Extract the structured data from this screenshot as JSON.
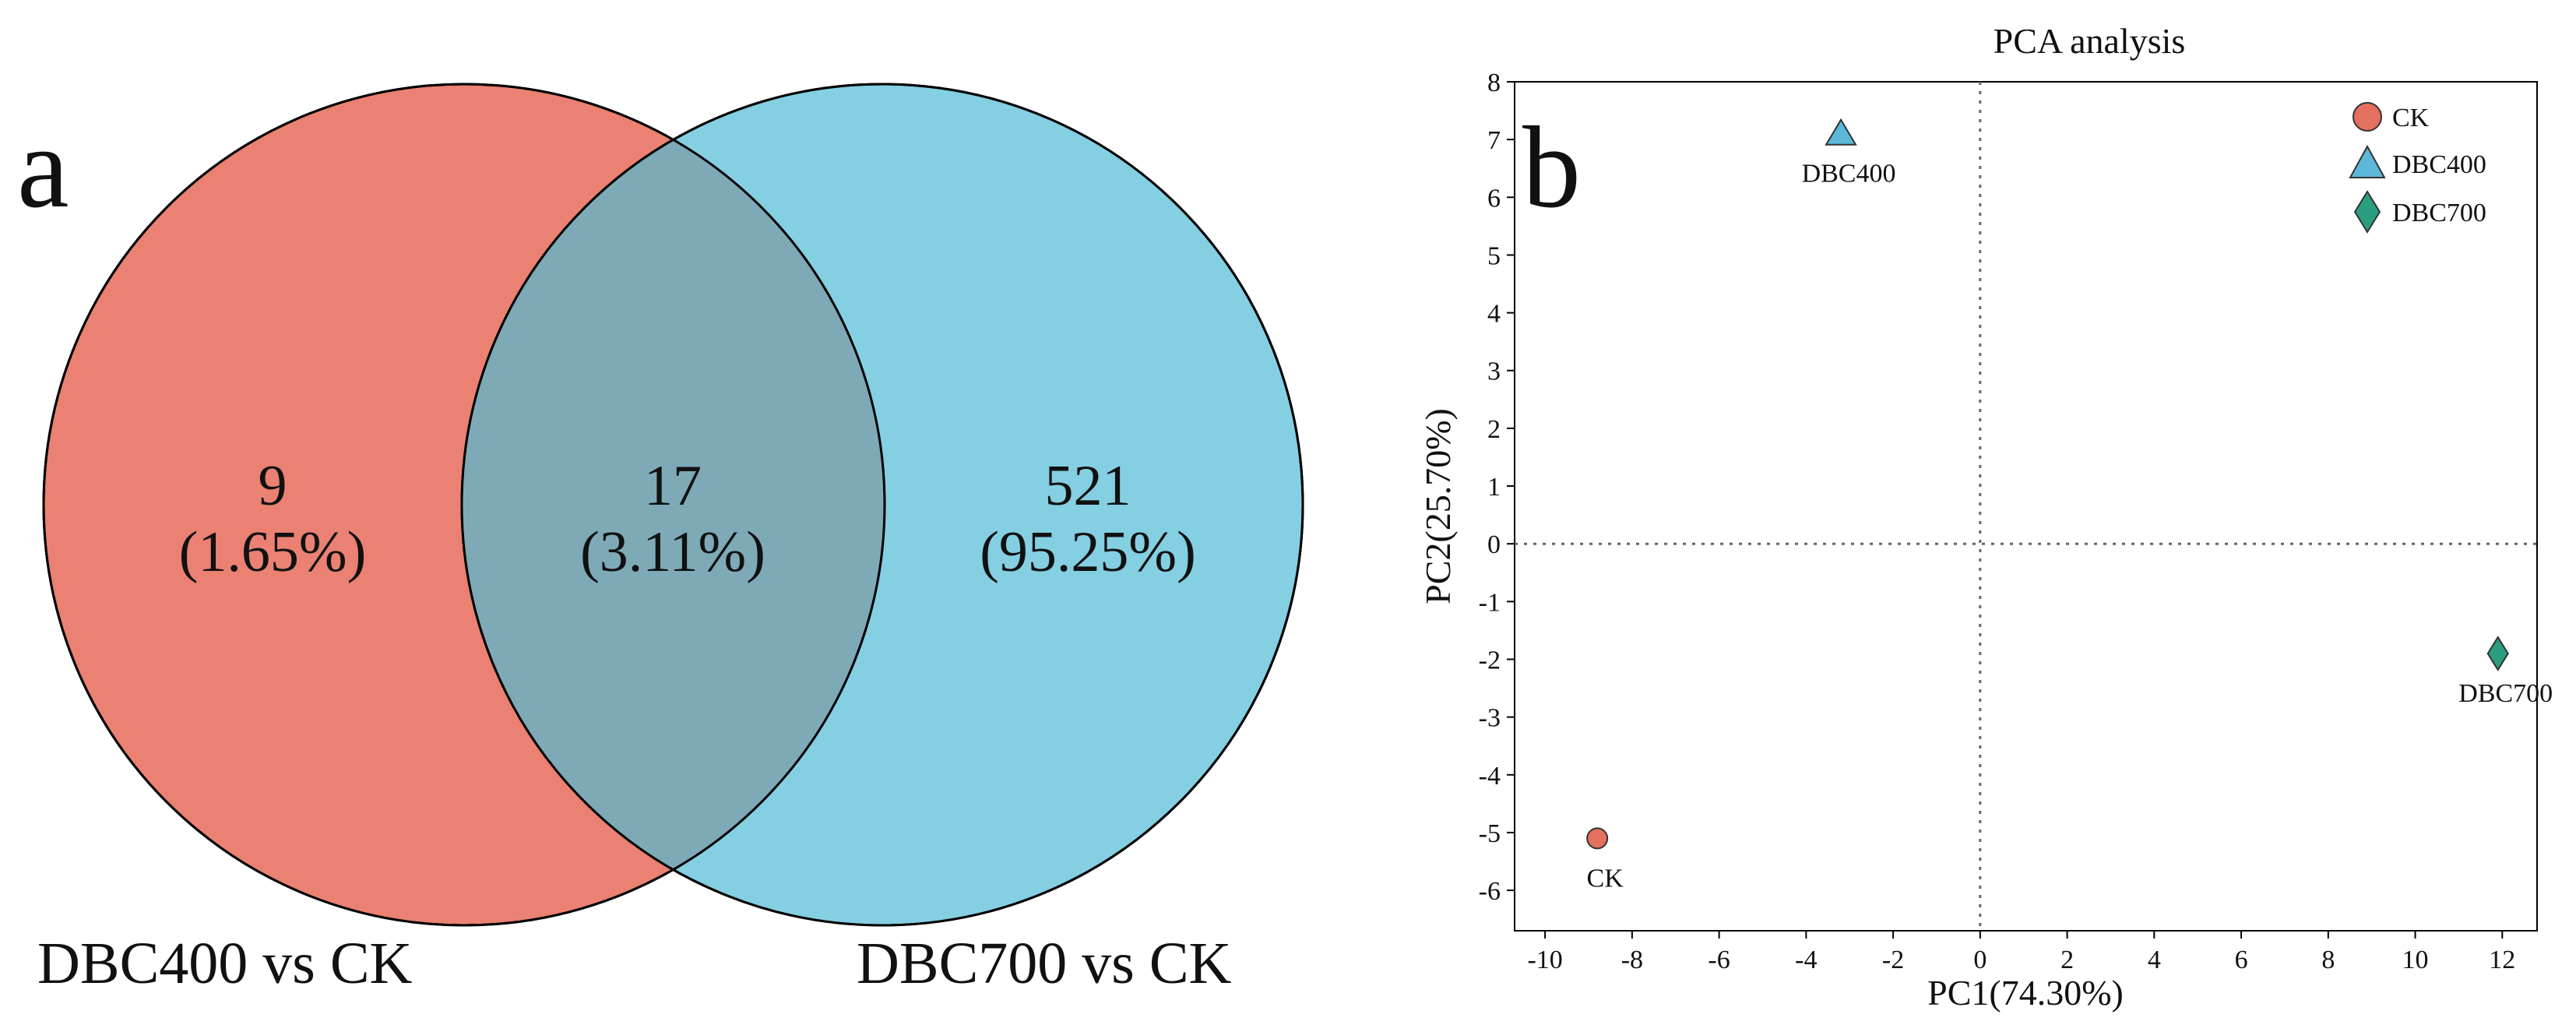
{
  "panels": {
    "a": "a",
    "b": "b"
  },
  "venn": {
    "sets": [
      {
        "name": "DBC400 vs CK",
        "color": "#ea8172"
      },
      {
        "name": "DBC700 vs CK",
        "color": "#84cfe2"
      }
    ],
    "overlap_color": "#7eaab7",
    "regions": [
      {
        "count": "9",
        "pct": "(1.65%)"
      },
      {
        "count": "17",
        "pct": "(3.11%)"
      },
      {
        "count": "521",
        "pct": "(95.25%)"
      }
    ]
  },
  "chart_data": {
    "type": "scatter",
    "title": "PCA analysis",
    "xlabel": "PC1(74.30%)",
    "ylabel": "PC2(25.70%)",
    "xlim": [
      -10.7,
      12.8
    ],
    "ylim": [
      -6.7,
      8
    ],
    "xticks": [
      -10,
      -8,
      -6,
      -4,
      -2,
      0,
      2,
      4,
      6,
      8,
      10,
      12
    ],
    "yticks": [
      -6,
      -5,
      -4,
      -3,
      -2,
      -1,
      0,
      1,
      2,
      3,
      4,
      5,
      6,
      7,
      8
    ],
    "reference_lines": {
      "x": 0,
      "y": 0,
      "style": "dotted"
    },
    "legend_position": "top-right",
    "series": [
      {
        "name": "CK",
        "marker": "circle",
        "color": "#e4705f",
        "x": -8.8,
        "y": -5.1,
        "label": "CK"
      },
      {
        "name": "DBC400",
        "marker": "triangle",
        "color": "#5bb8d8",
        "x": -3.2,
        "y": 7.1,
        "label": "DBC400"
      },
      {
        "name": "DBC700",
        "marker": "diamond",
        "color": "#2a9d82",
        "x": 11.9,
        "y": -1.9,
        "label": "DBC700"
      }
    ]
  }
}
